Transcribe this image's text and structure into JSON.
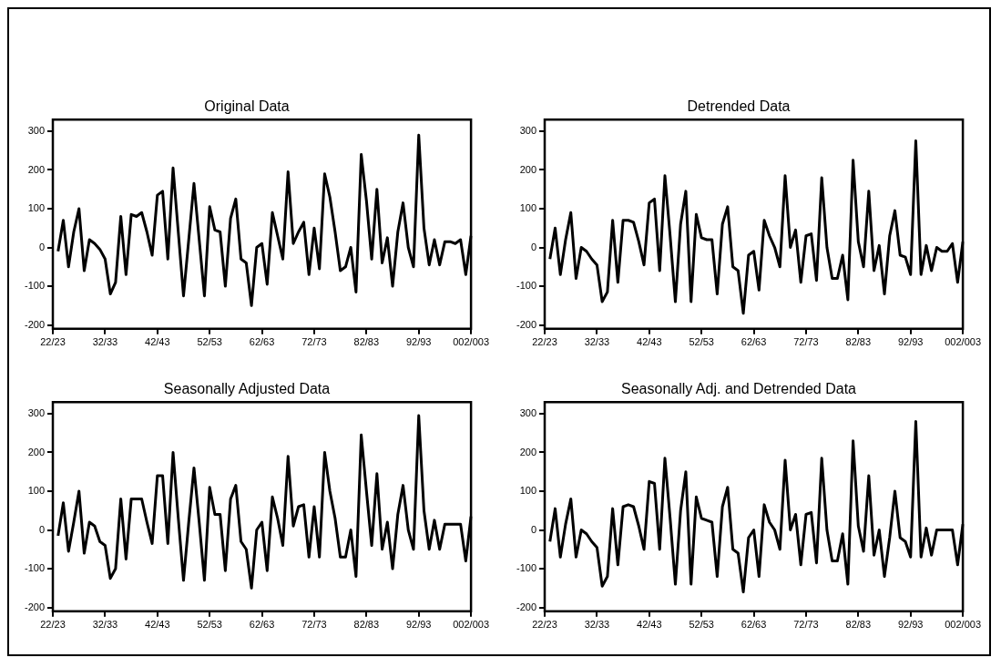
{
  "chart_data": [
    {
      "type": "line",
      "title": "Original Data",
      "categories": [
        "22/23",
        null,
        null,
        null,
        null,
        null,
        null,
        null,
        null,
        null,
        "32/33",
        null,
        null,
        null,
        null,
        null,
        null,
        null,
        null,
        null,
        "42/43",
        null,
        null,
        null,
        null,
        null,
        null,
        null,
        null,
        null,
        "52/53",
        null,
        null,
        null,
        null,
        null,
        null,
        null,
        null,
        null,
        "62/63",
        null,
        null,
        null,
        null,
        null,
        null,
        null,
        null,
        null,
        "72/73",
        null,
        null,
        null,
        null,
        null,
        null,
        null,
        null,
        null,
        "82/83",
        null,
        null,
        null,
        null,
        null,
        null,
        null,
        null,
        null,
        "92/93",
        null,
        null,
        null,
        null,
        null,
        null,
        null,
        null,
        null,
        "002/003"
      ],
      "color": "#000000",
      "ylim": [
        -210,
        330
      ],
      "yticks": [
        -200,
        -100,
        0,
        100,
        200,
        300
      ],
      "grid": false,
      "values": [
        null,
        -10,
        70,
        -50,
        40,
        100,
        -60,
        20,
        10,
        -5,
        -30,
        -120,
        -90,
        80,
        -70,
        85,
        80,
        90,
        40,
        -20,
        135,
        145,
        -30,
        205,
        40,
        -125,
        20,
        165,
        20,
        -125,
        105,
        45,
        40,
        -100,
        75,
        125,
        -30,
        -40,
        -150,
        0,
        10,
        -95,
        90,
        30,
        -30,
        195,
        10,
        40,
        65,
        -70,
        50,
        -55,
        190,
        130,
        40,
        -60,
        -50,
        0,
        -115,
        240,
        120,
        -30,
        150,
        -40,
        25,
        -100,
        40,
        115,
        0,
        -50,
        290,
        50,
        -45,
        20,
        -45,
        15,
        15,
        10,
        20,
        -70,
        30
      ]
    },
    {
      "type": "line",
      "title": "Detrended Data",
      "categories": [
        "22/23",
        null,
        null,
        null,
        null,
        null,
        null,
        null,
        null,
        null,
        "32/33",
        null,
        null,
        null,
        null,
        null,
        null,
        null,
        null,
        null,
        "42/43",
        null,
        null,
        null,
        null,
        null,
        null,
        null,
        null,
        null,
        "52/53",
        null,
        null,
        null,
        null,
        null,
        null,
        null,
        null,
        null,
        "62/63",
        null,
        null,
        null,
        null,
        null,
        null,
        null,
        null,
        null,
        "72/73",
        null,
        null,
        null,
        null,
        null,
        null,
        null,
        null,
        null,
        "82/83",
        null,
        null,
        null,
        null,
        null,
        null,
        null,
        null,
        null,
        "92/93",
        null,
        null,
        null,
        null,
        null,
        null,
        null,
        null,
        null,
        "002/003"
      ],
      "color": "#000000",
      "ylim": [
        -210,
        330
      ],
      "yticks": [
        -200,
        -100,
        0,
        100,
        200,
        300
      ],
      "grid": false,
      "values": [
        null,
        -30,
        50,
        -70,
        20,
        90,
        -80,
        0,
        -10,
        -30,
        -45,
        -140,
        -115,
        70,
        -90,
        70,
        70,
        65,
        15,
        -45,
        115,
        125,
        -60,
        185,
        30,
        -140,
        60,
        145,
        -140,
        85,
        25,
        20,
        20,
        -120,
        60,
        105,
        -50,
        -60,
        -170,
        -20,
        -10,
        -110,
        70,
        30,
        0,
        -50,
        185,
        0,
        45,
        -90,
        30,
        35,
        -85,
        180,
        0,
        -80,
        -80,
        -20,
        -135,
        225,
        15,
        -50,
        145,
        -60,
        5,
        -120,
        30,
        95,
        -20,
        -25,
        -70,
        275,
        -70,
        5,
        -60,
        0,
        -10,
        -10,
        10,
        -90,
        15
      ]
    },
    {
      "type": "line",
      "title": "Seasonally Adjusted Data",
      "categories": [
        "22/23",
        null,
        null,
        null,
        null,
        null,
        null,
        null,
        null,
        null,
        "32/33",
        null,
        null,
        null,
        null,
        null,
        null,
        null,
        null,
        null,
        "42/43",
        null,
        null,
        null,
        null,
        null,
        null,
        null,
        null,
        null,
        "52/53",
        null,
        null,
        null,
        null,
        null,
        null,
        null,
        null,
        null,
        "62/63",
        null,
        null,
        null,
        null,
        null,
        null,
        null,
        null,
        null,
        "72/73",
        null,
        null,
        null,
        null,
        null,
        null,
        null,
        null,
        null,
        "82/83",
        null,
        null,
        null,
        null,
        null,
        null,
        null,
        null,
        null,
        "92/93",
        null,
        null,
        null,
        null,
        null,
        null,
        null,
        null,
        null,
        "002/003"
      ],
      "color": "#000000",
      "ylim": [
        -210,
        330
      ],
      "yticks": [
        -200,
        -100,
        0,
        100,
        200,
        300
      ],
      "grid": false,
      "values": [
        null,
        -15,
        70,
        -55,
        20,
        100,
        -60,
        20,
        10,
        -30,
        -40,
        -125,
        -100,
        80,
        -75,
        80,
        80,
        80,
        20,
        -35,
        140,
        140,
        -35,
        200,
        30,
        -130,
        20,
        160,
        20,
        -130,
        110,
        40,
        40,
        -105,
        80,
        115,
        -30,
        -50,
        -150,
        0,
        20,
        -105,
        85,
        30,
        -40,
        190,
        10,
        60,
        65,
        -70,
        60,
        -70,
        200,
        100,
        30,
        -70,
        -70,
        0,
        -120,
        245,
        100,
        -40,
        145,
        -50,
        20,
        -100,
        40,
        115,
        0,
        -50,
        295,
        50,
        -50,
        25,
        -50,
        15,
        15,
        15,
        15,
        -80,
        35
      ]
    },
    {
      "type": "line",
      "title": "Seasonally Adj. and Detrended Data",
      "categories": [
        "22/23",
        null,
        null,
        null,
        null,
        null,
        null,
        null,
        null,
        null,
        "32/33",
        null,
        null,
        null,
        null,
        null,
        null,
        null,
        null,
        null,
        "42/43",
        null,
        null,
        null,
        null,
        null,
        null,
        null,
        null,
        null,
        "52/53",
        null,
        null,
        null,
        null,
        null,
        null,
        null,
        null,
        null,
        "62/63",
        null,
        null,
        null,
        null,
        null,
        null,
        null,
        null,
        null,
        "72/73",
        null,
        null,
        null,
        null,
        null,
        null,
        null,
        null,
        null,
        "82/83",
        null,
        null,
        null,
        null,
        null,
        null,
        null,
        null,
        null,
        "92/93",
        null,
        null,
        null,
        null,
        null,
        null,
        null,
        null,
        null,
        "002/003"
      ],
      "color": "#000000",
      "ylim": [
        -210,
        330
      ],
      "yticks": [
        -200,
        -100,
        0,
        100,
        200,
        300
      ],
      "grid": false,
      "values": [
        null,
        -30,
        55,
        -70,
        15,
        80,
        -70,
        0,
        -10,
        -30,
        -45,
        -145,
        -120,
        55,
        -90,
        60,
        65,
        60,
        10,
        -50,
        125,
        120,
        -50,
        185,
        30,
        -140,
        50,
        150,
        -140,
        85,
        30,
        25,
        20,
        -120,
        60,
        110,
        -50,
        -60,
        -160,
        -20,
        0,
        -120,
        65,
        20,
        0,
        -50,
        180,
        0,
        40,
        -90,
        40,
        45,
        -85,
        185,
        0,
        -80,
        -80,
        -10,
        -140,
        230,
        10,
        -55,
        140,
        -65,
        0,
        -120,
        -20,
        100,
        -20,
        -30,
        -70,
        280,
        -70,
        5,
        -65,
        0,
        0,
        0,
        0,
        -90,
        15
      ]
    }
  ]
}
